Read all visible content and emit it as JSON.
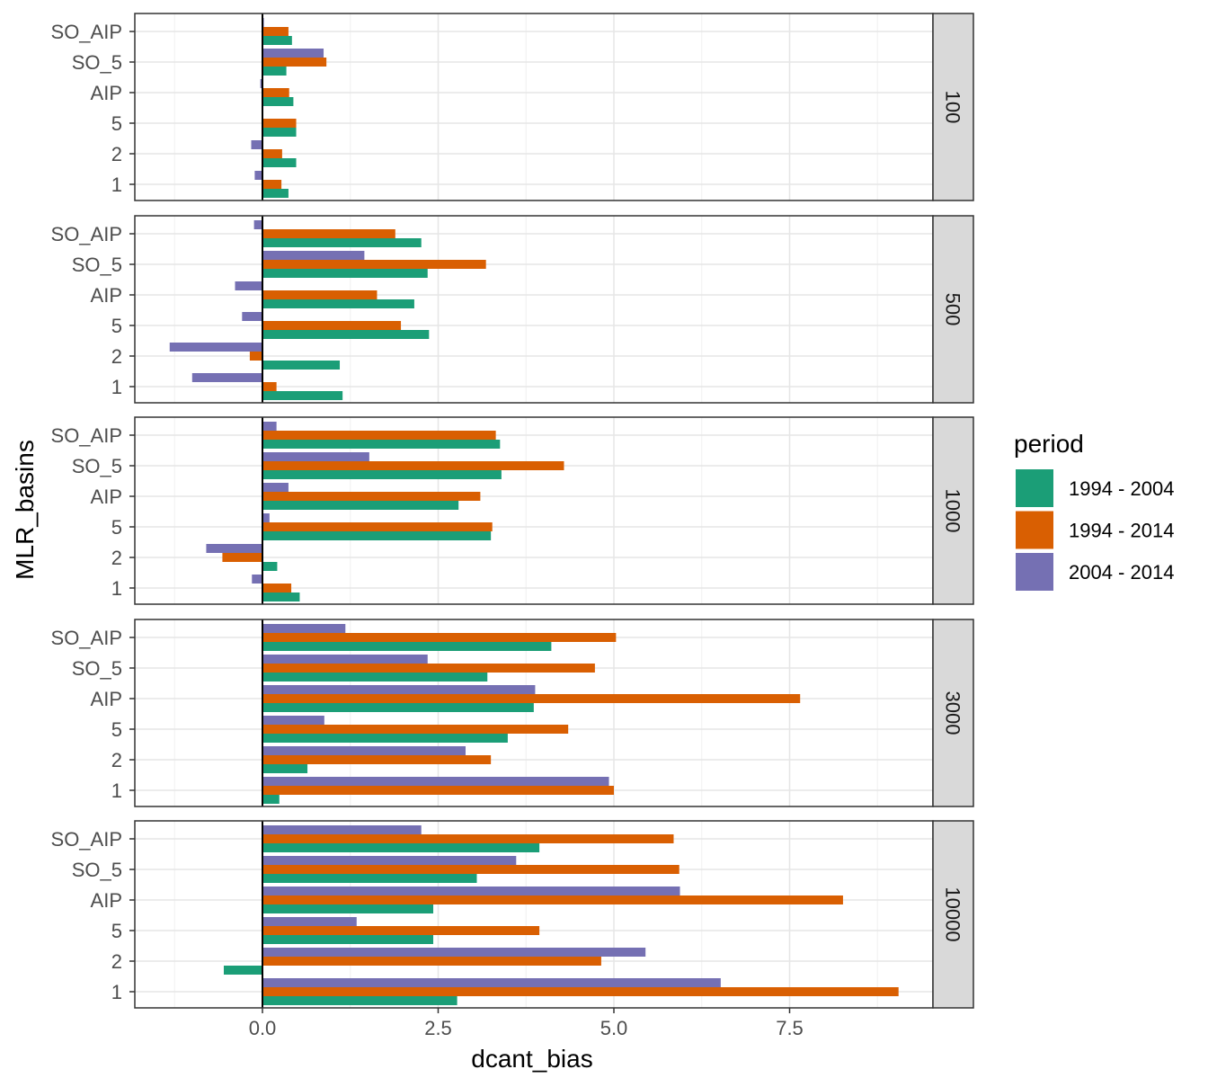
{
  "chart_data": {
    "type": "bar",
    "orientation": "horizontal",
    "faceted": true,
    "xlabel": "dcant_bias",
    "ylabel": "MLR_basins",
    "xlim": [
      -1.8,
      9.5
    ],
    "x_ticks": [
      0.0,
      2.5,
      5.0,
      7.5
    ],
    "x_tick_labels": [
      "0.0",
      "2.5",
      "5.0",
      "7.5"
    ],
    "x_zero_line": 0,
    "grid": true,
    "legend": {
      "title": "period",
      "placement": "right",
      "entries": [
        "1994 - 2004",
        "1994 - 2014",
        "2004 - 2014"
      ]
    },
    "series_colors": [
      "#1b9e77",
      "#d95f02",
      "#7570b3"
    ],
    "categories": [
      "1",
      "2",
      "5",
      "AIP",
      "SO_5",
      "SO_AIP"
    ],
    "facets": [
      {
        "label": "100",
        "series": [
          {
            "name": "1994 - 2004",
            "values": [
              0.37,
              0.48,
              0.48,
              0.44,
              0.34,
              0.42
            ]
          },
          {
            "name": "1994 - 2014",
            "values": [
              0.27,
              0.28,
              0.48,
              0.38,
              0.91,
              0.37
            ]
          },
          {
            "name": "2004 - 2014",
            "values": [
              -0.11,
              -0.16,
              0.0,
              -0.03,
              0.87,
              0.02
            ]
          }
        ]
      },
      {
        "label": "500",
        "series": [
          {
            "name": "1994 - 2004",
            "values": [
              1.14,
              1.1,
              2.37,
              2.16,
              2.35,
              2.26
            ]
          },
          {
            "name": "1994 - 2014",
            "values": [
              0.2,
              -0.18,
              1.97,
              1.63,
              3.18,
              1.89
            ]
          },
          {
            "name": "2004 - 2014",
            "values": [
              -1.0,
              -1.32,
              -0.29,
              -0.39,
              1.45,
              -0.12
            ]
          }
        ]
      },
      {
        "label": "1000",
        "series": [
          {
            "name": "1994 - 2004",
            "values": [
              0.53,
              0.21,
              3.25,
              2.79,
              3.4,
              3.38
            ]
          },
          {
            "name": "1994 - 2014",
            "values": [
              0.41,
              -0.57,
              3.27,
              3.1,
              4.29,
              3.32
            ]
          },
          {
            "name": "2004 - 2014",
            "values": [
              -0.15,
              -0.8,
              0.1,
              0.37,
              1.52,
              0.2
            ]
          }
        ]
      },
      {
        "label": "3000",
        "series": [
          {
            "name": "1994 - 2004",
            "values": [
              0.24,
              0.64,
              3.49,
              3.86,
              3.2,
              4.11
            ]
          },
          {
            "name": "1994 - 2014",
            "values": [
              5.0,
              3.25,
              4.35,
              7.65,
              4.73,
              5.03
            ]
          },
          {
            "name": "2004 - 2014",
            "values": [
              4.93,
              2.89,
              0.88,
              3.88,
              2.35,
              1.18
            ]
          }
        ]
      },
      {
        "label": "10000",
        "series": [
          {
            "name": "1994 - 2004",
            "values": [
              2.77,
              -0.55,
              2.43,
              2.43,
              3.05,
              3.94
            ]
          },
          {
            "name": "1994 - 2014",
            "values": [
              9.05,
              4.82,
              3.94,
              8.26,
              5.93,
              5.85
            ]
          },
          {
            "name": "2004 - 2014",
            "values": [
              6.52,
              5.45,
              1.34,
              5.94,
              3.61,
              2.26
            ]
          }
        ]
      }
    ]
  }
}
